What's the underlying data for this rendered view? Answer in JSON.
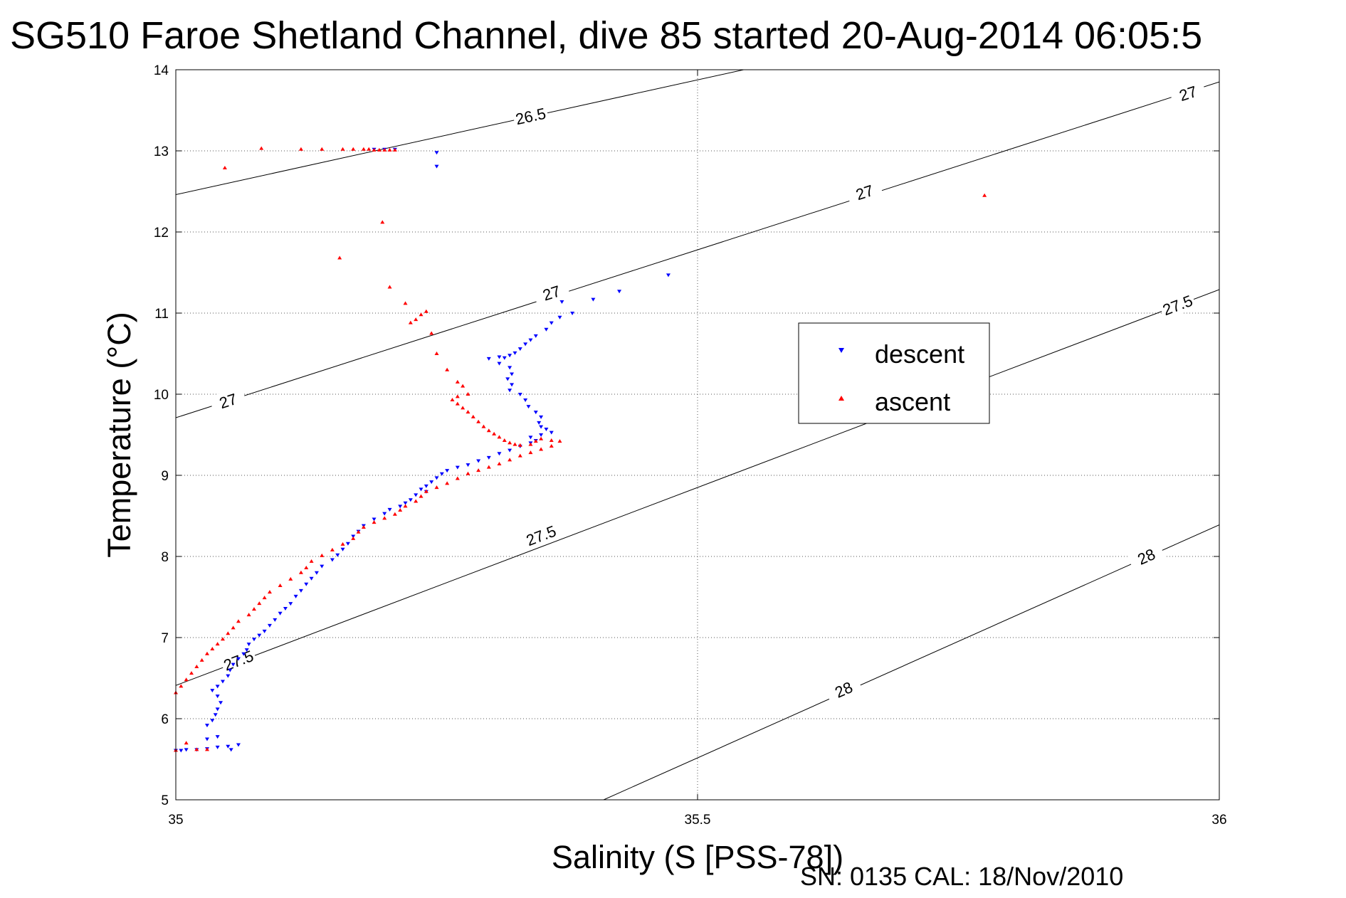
{
  "chart_data": {
    "type": "scatter",
    "title": "SG510 Faroe Shetland Channel, dive 85 started 20-Aug-2014 06:05:5",
    "xlabel": "Salinity (S [PSS-78])",
    "ylabel": "Temperature (°C)",
    "xlim": [
      35,
      36
    ],
    "ylim": [
      5,
      14
    ],
    "x_ticks": [
      35,
      35.5,
      36
    ],
    "x_tick_labels": [
      "35",
      "35.5",
      "36"
    ],
    "y_ticks": [
      5,
      6,
      7,
      8,
      9,
      10,
      11,
      12,
      13,
      14
    ],
    "y_tick_labels": [
      "5",
      "6",
      "7",
      "8",
      "9",
      "10",
      "11",
      "12",
      "13",
      "14"
    ],
    "grid": true,
    "legend": {
      "placement": "center-right"
    },
    "density_contours": [
      {
        "label": "26.5",
        "points": [
          [
            35.0,
            12.46
          ],
          [
            36.0,
            15.29
          ]
        ],
        "label_positions": [
          [
            35.34,
            13.43
          ]
        ]
      },
      {
        "label": "27",
        "points": [
          [
            35.0,
            9.71
          ],
          [
            36.0,
            13.85
          ]
        ],
        "label_positions": [
          [
            35.05,
            9.92
          ],
          [
            35.36,
            11.25
          ],
          [
            35.66,
            12.49
          ],
          [
            35.97,
            13.71
          ]
        ]
      },
      {
        "label": "27.5",
        "points": [
          [
            35.0,
            6.41
          ],
          [
            36.0,
            11.29
          ]
        ],
        "label_positions": [
          [
            35.06,
            6.72
          ],
          [
            35.35,
            8.26
          ],
          [
            35.96,
            11.1
          ]
        ]
      },
      {
        "label": "28",
        "points": [
          [
            35.41,
            5.0
          ],
          [
            36.0,
            8.39
          ]
        ],
        "label_positions": [
          [
            35.64,
            6.36
          ],
          [
            35.93,
            8.0
          ]
        ]
      }
    ],
    "series": [
      {
        "name": "descent",
        "color": "#0000ff",
        "marker": "triangle-down",
        "points": [
          [
            35.25,
            12.81
          ],
          [
            35.25,
            12.98
          ],
          [
            35.21,
            13.02
          ],
          [
            35.2,
            13.02
          ],
          [
            35.19,
            13.02
          ],
          [
            35.472,
            11.47
          ],
          [
            35.425,
            11.27
          ],
          [
            35.4,
            11.17
          ],
          [
            35.37,
            11.14
          ],
          [
            35.38,
            11.0
          ],
          [
            35.368,
            10.95
          ],
          [
            35.36,
            10.88
          ],
          [
            35.355,
            10.8
          ],
          [
            35.345,
            10.72
          ],
          [
            35.34,
            10.67
          ],
          [
            35.335,
            10.62
          ],
          [
            35.33,
            10.56
          ],
          [
            35.325,
            10.51
          ],
          [
            35.32,
            10.48
          ],
          [
            35.315,
            10.45
          ],
          [
            35.31,
            10.46
          ],
          [
            35.3,
            10.44
          ],
          [
            35.31,
            10.38
          ],
          [
            35.32,
            10.33
          ],
          [
            35.322,
            10.25
          ],
          [
            35.318,
            10.19
          ],
          [
            35.322,
            10.12
          ],
          [
            35.32,
            10.05
          ],
          [
            35.33,
            10.0
          ],
          [
            35.335,
            9.93
          ],
          [
            35.338,
            9.85
          ],
          [
            35.345,
            9.78
          ],
          [
            35.35,
            9.72
          ],
          [
            35.348,
            9.65
          ],
          [
            35.35,
            9.6
          ],
          [
            35.355,
            9.57
          ],
          [
            35.36,
            9.53
          ],
          [
            35.35,
            9.5
          ],
          [
            35.34,
            9.47
          ],
          [
            35.345,
            9.43
          ],
          [
            35.34,
            9.4
          ],
          [
            35.33,
            9.36
          ],
          [
            35.32,
            9.31
          ],
          [
            35.31,
            9.27
          ],
          [
            35.3,
            9.22
          ],
          [
            35.29,
            9.18
          ],
          [
            35.28,
            9.13
          ],
          [
            35.27,
            9.1
          ],
          [
            35.26,
            9.06
          ],
          [
            35.255,
            9.02
          ],
          [
            35.25,
            8.97
          ],
          [
            35.245,
            8.92
          ],
          [
            35.24,
            8.87
          ],
          [
            35.235,
            8.83
          ],
          [
            35.23,
            8.76
          ],
          [
            35.225,
            8.7
          ],
          [
            35.22,
            8.66
          ],
          [
            35.215,
            8.62
          ],
          [
            35.205,
            8.58
          ],
          [
            35.2,
            8.53
          ],
          [
            35.24,
            8.8
          ],
          [
            35.19,
            8.46
          ],
          [
            35.18,
            8.38
          ],
          [
            35.175,
            8.31
          ],
          [
            35.17,
            8.25
          ],
          [
            35.165,
            8.16
          ],
          [
            35.16,
            8.09
          ],
          [
            35.155,
            8.02
          ],
          [
            35.15,
            7.96
          ],
          [
            35.14,
            7.88
          ],
          [
            35.135,
            7.8
          ],
          [
            35.13,
            7.73
          ],
          [
            35.125,
            7.66
          ],
          [
            35.12,
            7.58
          ],
          [
            35.115,
            7.51
          ],
          [
            35.11,
            7.42
          ],
          [
            35.105,
            7.36
          ],
          [
            35.1,
            7.3
          ],
          [
            35.095,
            7.22
          ],
          [
            35.09,
            7.15
          ],
          [
            35.085,
            7.08
          ],
          [
            35.08,
            7.03
          ],
          [
            35.075,
            6.98
          ],
          [
            35.07,
            6.92
          ],
          [
            35.068,
            6.85
          ],
          [
            35.065,
            6.8
          ],
          [
            35.06,
            6.74
          ],
          [
            35.055,
            6.67
          ],
          [
            35.052,
            6.6
          ],
          [
            35.05,
            6.53
          ],
          [
            35.045,
            6.46
          ],
          [
            35.04,
            6.4
          ],
          [
            35.035,
            6.35
          ],
          [
            35.04,
            6.28
          ],
          [
            35.043,
            6.2
          ],
          [
            35.04,
            6.12
          ],
          [
            35.038,
            6.05
          ],
          [
            35.035,
            5.98
          ],
          [
            35.03,
            5.92
          ],
          [
            35.04,
            5.78
          ],
          [
            35.03,
            5.75
          ],
          [
            35.06,
            5.68
          ],
          [
            35.05,
            5.66
          ],
          [
            35.04,
            5.65
          ],
          [
            35.03,
            5.63
          ],
          [
            35.02,
            5.62
          ],
          [
            35.01,
            5.62
          ],
          [
            35.005,
            5.61
          ],
          [
            35.0,
            5.61
          ],
          [
            35.053,
            5.62
          ]
        ]
      },
      {
        "name": "ascent",
        "color": "#ff0000",
        "marker": "triangle-up",
        "points": [
          [
            35.047,
            12.79
          ],
          [
            35.082,
            13.03
          ],
          [
            35.12,
            13.02
          ],
          [
            35.14,
            13.02
          ],
          [
            35.16,
            13.02
          ],
          [
            35.17,
            13.02
          ],
          [
            35.18,
            13.02
          ],
          [
            35.185,
            13.02
          ],
          [
            35.19,
            13.01
          ],
          [
            35.195,
            13.01
          ],
          [
            35.2,
            13.01
          ],
          [
            35.205,
            13.01
          ],
          [
            35.21,
            13.01
          ],
          [
            35.775,
            12.45
          ],
          [
            35.198,
            12.12
          ],
          [
            35.157,
            11.68
          ],
          [
            35.205,
            11.32
          ],
          [
            35.22,
            11.12
          ],
          [
            35.24,
            11.02
          ],
          [
            35.235,
            10.98
          ],
          [
            35.23,
            10.92
          ],
          [
            35.225,
            10.88
          ],
          [
            35.245,
            10.75
          ],
          [
            35.25,
            10.5
          ],
          [
            35.26,
            10.3
          ],
          [
            35.27,
            10.15
          ],
          [
            35.275,
            10.1
          ],
          [
            35.28,
            10.0
          ],
          [
            35.27,
            9.97
          ],
          [
            35.265,
            9.93
          ],
          [
            35.27,
            9.88
          ],
          [
            35.275,
            9.83
          ],
          [
            35.28,
            9.78
          ],
          [
            35.285,
            9.72
          ],
          [
            35.29,
            9.66
          ],
          [
            35.295,
            9.6
          ],
          [
            35.3,
            9.55
          ],
          [
            35.305,
            9.51
          ],
          [
            35.31,
            9.47
          ],
          [
            35.315,
            9.43
          ],
          [
            35.32,
            9.4
          ],
          [
            35.325,
            9.38
          ],
          [
            35.33,
            9.37
          ],
          [
            35.34,
            9.38
          ],
          [
            35.345,
            9.42
          ],
          [
            35.35,
            9.45
          ],
          [
            35.36,
            9.43
          ],
          [
            35.368,
            9.42
          ],
          [
            35.36,
            9.36
          ],
          [
            35.35,
            9.32
          ],
          [
            35.34,
            9.28
          ],
          [
            35.33,
            9.24
          ],
          [
            35.32,
            9.19
          ],
          [
            35.31,
            9.14
          ],
          [
            35.3,
            9.1
          ],
          [
            35.29,
            9.06
          ],
          [
            35.28,
            9.02
          ],
          [
            35.27,
            8.96
          ],
          [
            35.26,
            8.9
          ],
          [
            35.25,
            8.85
          ],
          [
            35.24,
            8.8
          ],
          [
            35.235,
            8.74
          ],
          [
            35.23,
            8.68
          ],
          [
            35.22,
            8.62
          ],
          [
            35.215,
            8.57
          ],
          [
            35.21,
            8.52
          ],
          [
            35.2,
            8.47
          ],
          [
            35.19,
            8.42
          ],
          [
            35.18,
            8.36
          ],
          [
            35.175,
            8.3
          ],
          [
            35.17,
            8.22
          ],
          [
            35.16,
            8.15
          ],
          [
            35.15,
            8.08
          ],
          [
            35.14,
            8.01
          ],
          [
            35.13,
            7.94
          ],
          [
            35.125,
            7.86
          ],
          [
            35.12,
            7.8
          ],
          [
            35.11,
            7.72
          ],
          [
            35.1,
            7.64
          ],
          [
            35.09,
            7.56
          ],
          [
            35.085,
            7.49
          ],
          [
            35.08,
            7.42
          ],
          [
            35.075,
            7.35
          ],
          [
            35.07,
            7.28
          ],
          [
            35.06,
            7.2
          ],
          [
            35.055,
            7.12
          ],
          [
            35.05,
            7.05
          ],
          [
            35.045,
            6.98
          ],
          [
            35.04,
            6.92
          ],
          [
            35.035,
            6.86
          ],
          [
            35.03,
            6.8
          ],
          [
            35.025,
            6.72
          ],
          [
            35.02,
            6.64
          ],
          [
            35.015,
            6.56
          ],
          [
            35.01,
            6.48
          ],
          [
            35.005,
            6.4
          ],
          [
            35.0,
            6.32
          ],
          [
            34.995,
            6.24
          ],
          [
            34.99,
            6.16
          ],
          [
            34.985,
            6.08
          ],
          [
            34.98,
            6.0
          ],
          [
            34.97,
            5.92
          ],
          [
            34.96,
            5.86
          ],
          [
            34.952,
            5.79
          ],
          [
            34.945,
            5.72
          ],
          [
            35.01,
            5.7
          ],
          [
            35.02,
            5.62
          ],
          [
            35.0,
            5.61
          ],
          [
            34.99,
            5.6
          ],
          [
            34.985,
            5.61
          ],
          [
            34.98,
            5.62
          ],
          [
            35.03,
            5.62
          ]
        ]
      }
    ]
  },
  "footer": {
    "serial": "SN: 0135  CAL: 18/Nov/2010"
  }
}
